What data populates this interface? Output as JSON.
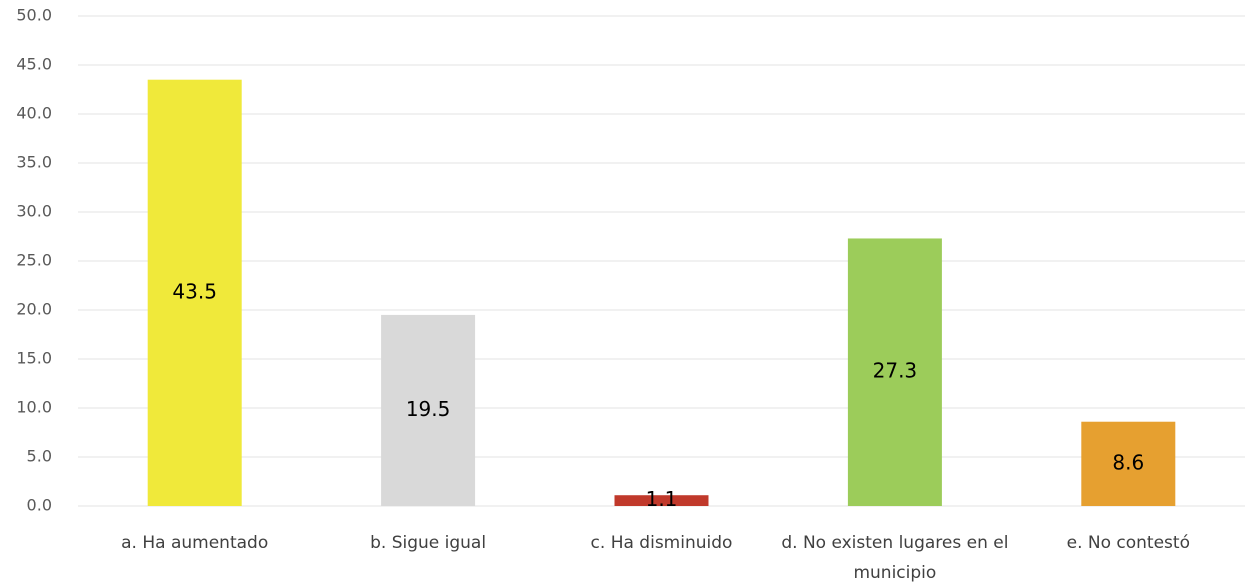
{
  "chart_data": {
    "type": "bar",
    "categories": [
      "a. Ha aumentado",
      "b. Sigue igual",
      "c. Ha disminuido",
      "d. No existen lugares en el municipio",
      "e. No contestó"
    ],
    "values": [
      43.5,
      19.5,
      1.1,
      27.3,
      8.6
    ],
    "colors": [
      "#f0e93a",
      "#d9d9d9",
      "#c0392b",
      "#9ccc5a",
      "#e6a030"
    ],
    "ylim": [
      0,
      50
    ],
    "yticks": [
      {
        "value": 0,
        "label": "0.0"
      },
      {
        "value": 5,
        "label": "5.0"
      },
      {
        "value": 10,
        "label": "10.0"
      },
      {
        "value": 15,
        "label": "15.0"
      },
      {
        "value": 20,
        "label": "20.0"
      },
      {
        "value": 25,
        "label": "25.0"
      },
      {
        "value": 30,
        "label": "30.0"
      },
      {
        "value": 35,
        "label": "35.0"
      },
      {
        "value": 40,
        "label": "40.0"
      },
      {
        "value": 45,
        "label": "45.0"
      },
      {
        "value": 50,
        "label": "50.0"
      }
    ],
    "grid": true
  }
}
